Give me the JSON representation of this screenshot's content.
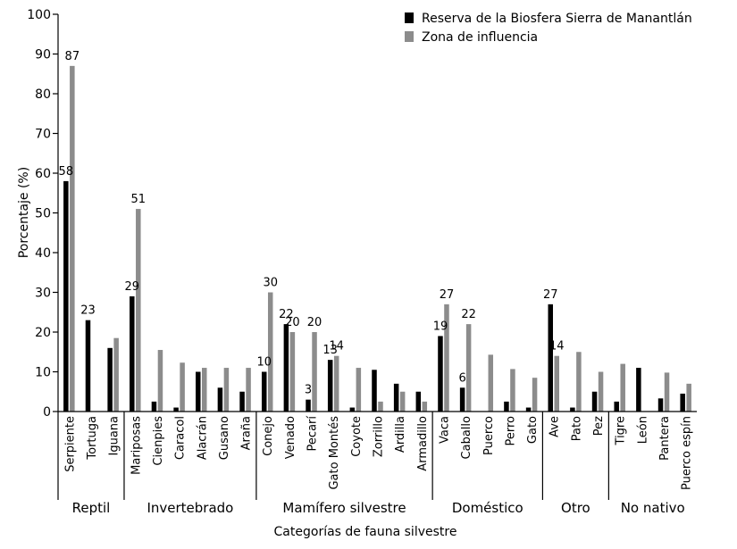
{
  "colors": {
    "reserve": "#000000",
    "influence": "#8c8c8c",
    "axis": "#000000"
  },
  "chart_data": {
    "type": "bar",
    "xlabel": "Categorías de fauna silvestre",
    "ylabel": "Porcentaje (%)",
    "ylim": [
      0,
      100
    ],
    "yticks": [
      0,
      10,
      20,
      30,
      40,
      50,
      60,
      70,
      80,
      90,
      100
    ],
    "grid": false,
    "legend_position": "top-right",
    "categories": [
      "Serpiente",
      "Tortuga",
      "Iguana",
      "Mariposas",
      "Cienpies",
      "Caracol",
      "Alacrán",
      "Gusano",
      "Araña",
      "Conejo",
      "Venado",
      "Pecarí",
      "Gato Montés",
      "Coyote",
      "Zorrillo",
      "Ardilla",
      "Armadillo",
      "Vaca",
      "Caballo",
      "Puerco",
      "Perro",
      "Gato",
      "Ave",
      "Pato",
      "Pez",
      "Tigre",
      "León",
      "Pantera",
      "Puerco espín"
    ],
    "groups": [
      {
        "name": "Reptil",
        "start": 0,
        "end": 2
      },
      {
        "name": "Invertebrado",
        "start": 3,
        "end": 8
      },
      {
        "name": "Mamífero silvestre",
        "start": 9,
        "end": 16
      },
      {
        "name": "Doméstico",
        "start": 17,
        "end": 21
      },
      {
        "name": "Otro",
        "start": 22,
        "end": 24
      },
      {
        "name": "No nativo",
        "start": 25,
        "end": 28
      }
    ],
    "series": [
      {
        "name": "Reserva de la Biosfera Sierra de Manantlán",
        "values": [
          58,
          23,
          16,
          29,
          2.5,
          1,
          10,
          6,
          5,
          10,
          22,
          3,
          13,
          1,
          10.5,
          7,
          5,
          19,
          6,
          0,
          2.5,
          1,
          27,
          1,
          5,
          2.5,
          11,
          3.3,
          4.5
        ]
      },
      {
        "name": "Zona de influencia",
        "values": [
          87,
          0,
          18.5,
          51,
          15.5,
          12.3,
          11,
          11,
          11,
          30,
          20,
          20,
          14,
          11,
          2.5,
          5,
          2.5,
          27,
          22,
          14.3,
          10.7,
          8.5,
          14,
          15,
          10,
          12,
          0,
          9.8,
          7
        ]
      }
    ],
    "data_labels": [
      {
        "category": 0,
        "series": 0,
        "text": "58"
      },
      {
        "category": 0,
        "series": 1,
        "text": "87"
      },
      {
        "category": 1,
        "series": 0,
        "text": "23"
      },
      {
        "category": 3,
        "series": 0,
        "text": "29"
      },
      {
        "category": 3,
        "series": 1,
        "text": "51"
      },
      {
        "category": 9,
        "series": 0,
        "text": "10"
      },
      {
        "category": 9,
        "series": 1,
        "text": "30"
      },
      {
        "category": 10,
        "series": 0,
        "text": "22"
      },
      {
        "category": 10,
        "series": 1,
        "text": "20"
      },
      {
        "category": 11,
        "series": 0,
        "text": "3"
      },
      {
        "category": 11,
        "series": 1,
        "text": "20"
      },
      {
        "category": 12,
        "series": 0,
        "text": "13"
      },
      {
        "category": 12,
        "series": 1,
        "text": "14"
      },
      {
        "category": 17,
        "series": 0,
        "text": "19"
      },
      {
        "category": 17,
        "series": 1,
        "text": "27"
      },
      {
        "category": 18,
        "series": 0,
        "text": "6"
      },
      {
        "category": 18,
        "series": 1,
        "text": "22"
      },
      {
        "category": 22,
        "series": 0,
        "text": "27"
      },
      {
        "category": 22,
        "series": 1,
        "text": "14"
      }
    ]
  }
}
